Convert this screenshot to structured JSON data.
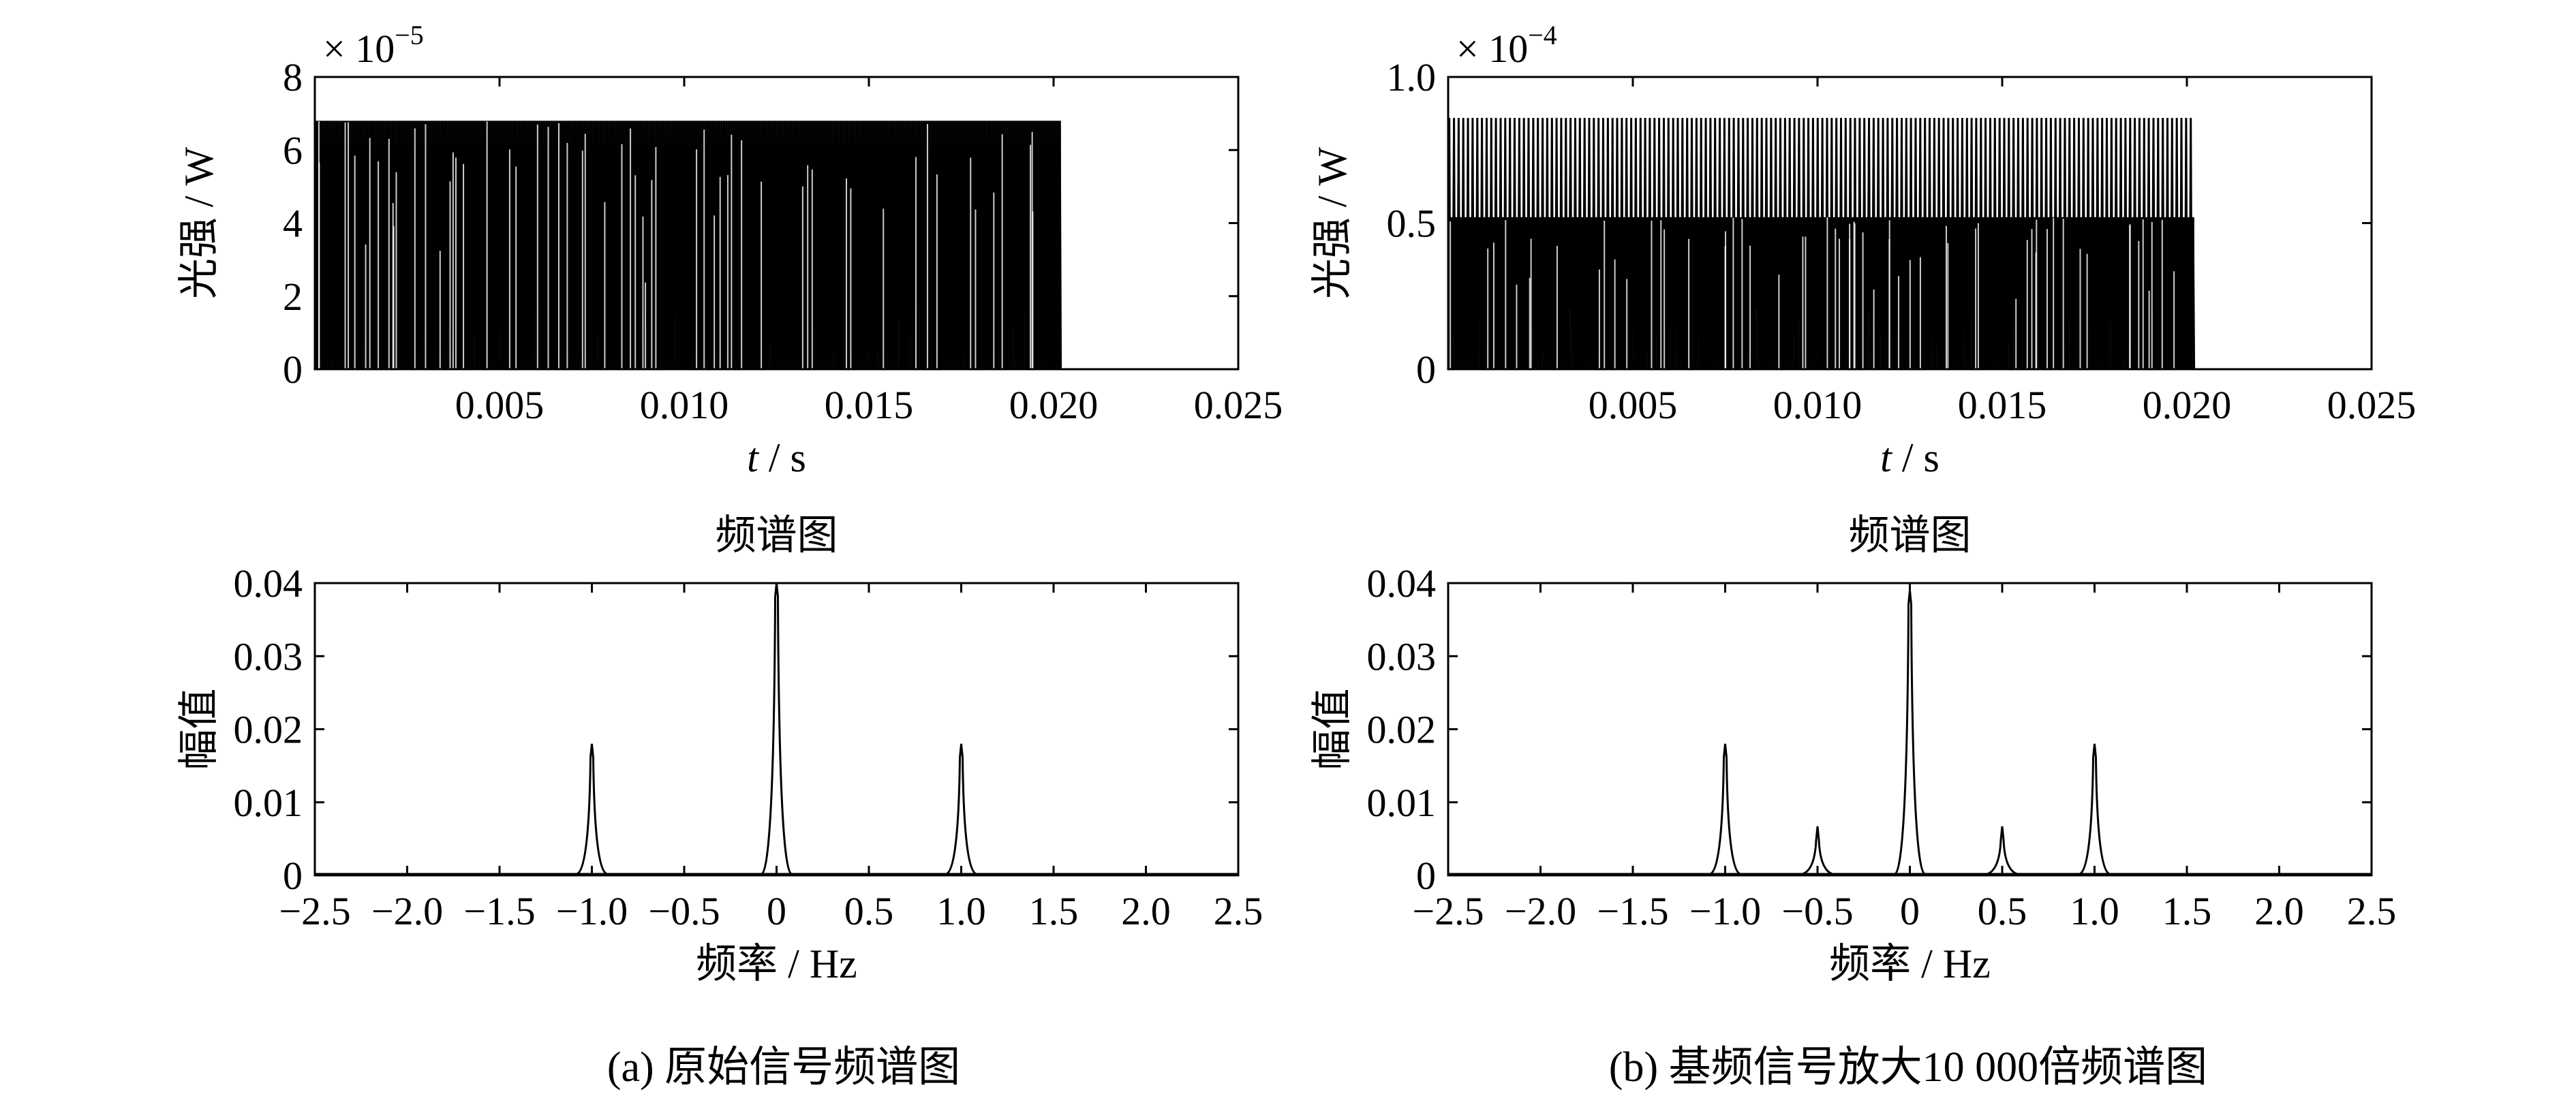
{
  "chart_data": [
    {
      "type": "line",
      "panel": "a-top",
      "title": "",
      "xlabel": "t / s",
      "ylabel": "光强 / W",
      "exponent_label": "× 10",
      "exponent_power": "−5",
      "xlim": [
        0,
        0.025
      ],
      "ylim": [
        0,
        8
      ],
      "xticks": [
        0.005,
        0.01,
        0.015,
        0.02,
        0.025
      ],
      "xtick_labels": [
        "0.005",
        "0.010",
        "0.015",
        "0.020",
        "0.025"
      ],
      "yticks": [
        0,
        2,
        4,
        6,
        8
      ],
      "ytick_labels": [
        "0",
        "2",
        "4",
        "6",
        "8"
      ],
      "signal": {
        "t_start": 0,
        "t_end": 0.0202,
        "min": 0,
        "max": 6.8,
        "description_levels": [
          6.8
        ]
      }
    },
    {
      "type": "line",
      "panel": "a-bottom",
      "title": "频谱图",
      "xlabel": "频率 / Hz",
      "ylabel": "幅值",
      "xlim": [
        -2.5,
        2.5
      ],
      "ylim": [
        0,
        0.04
      ],
      "xticks": [
        -2.5,
        -2.0,
        -1.5,
        -1.0,
        -0.5,
        0,
        0.5,
        1.0,
        1.5,
        2.0,
        2.5
      ],
      "xtick_labels": [
        "−2.5",
        "−2.0",
        "−1.5",
        "−1.0",
        "−0.5",
        "0",
        "0.5",
        "1.0",
        "1.5",
        "2.0",
        "2.5"
      ],
      "yticks": [
        0,
        0.01,
        0.02,
        0.03,
        0.04
      ],
      "ytick_labels": [
        "0",
        "0.01",
        "0.02",
        "0.03",
        "0.04"
      ],
      "peaks": [
        {
          "x": -1.0,
          "y": 0.018
        },
        {
          "x": 0,
          "y": 0.04
        },
        {
          "x": 1.0,
          "y": 0.018
        }
      ]
    },
    {
      "type": "line",
      "panel": "b-top",
      "title": "",
      "xlabel": "t / s",
      "ylabel": "光强 / W",
      "exponent_label": "× 10",
      "exponent_power": "−4",
      "xlim": [
        0,
        0.025
      ],
      "ylim": [
        0,
        1.0
      ],
      "xticks": [
        0.005,
        0.01,
        0.015,
        0.02,
        0.025
      ],
      "xtick_labels": [
        "0.005",
        "0.010",
        "0.015",
        "0.020",
        "0.025"
      ],
      "yticks": [
        0,
        0.5,
        1.0
      ],
      "ytick_labels": [
        "0",
        "0.5",
        "1.0"
      ],
      "signal": {
        "t_start": 0,
        "t_end": 0.0202,
        "min": 0,
        "max": 0.86,
        "description_levels": [
          0.86,
          0.52
        ]
      }
    },
    {
      "type": "line",
      "panel": "b-bottom",
      "title": "频谱图",
      "xlabel": "频率 / Hz",
      "ylabel": "幅值",
      "xlim": [
        -2.5,
        2.5
      ],
      "ylim": [
        0,
        0.04
      ],
      "xticks": [
        -2.5,
        -2.0,
        -1.5,
        -1.0,
        -0.5,
        0,
        0.5,
        1.0,
        1.5,
        2.0,
        2.5
      ],
      "xtick_labels": [
        "−2.5",
        "−2.0",
        "−1.5",
        "−1.0",
        "−0.5",
        "0",
        "0.5",
        "1.0",
        "1.5",
        "2.0",
        "2.5"
      ],
      "yticks": [
        0,
        0.01,
        0.02,
        0.03,
        0.04
      ],
      "ytick_labels": [
        "0",
        "0.01",
        "0.02",
        "0.03",
        "0.04"
      ],
      "peaks": [
        {
          "x": -1.0,
          "y": 0.018
        },
        {
          "x": -0.5,
          "y": 0.0067
        },
        {
          "x": 0,
          "y": 0.039
        },
        {
          "x": 0.5,
          "y": 0.0067
        },
        {
          "x": 1.0,
          "y": 0.018
        }
      ]
    }
  ],
  "captions": {
    "a": "(a) 原始信号频谱图",
    "b": "(b) 基频信号放大10 000倍频谱图"
  },
  "colors": {
    "line": "#000000",
    "background": "#ffffff"
  }
}
